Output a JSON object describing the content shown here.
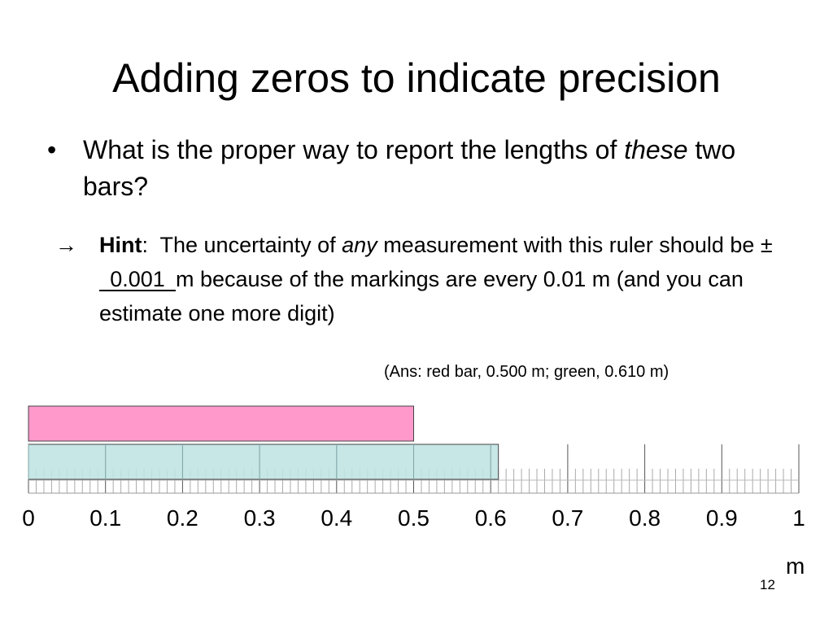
{
  "slide": {
    "title": "Adding zeros to indicate precision",
    "bullet": {
      "symbol": "•",
      "text_before": "What is the proper way to report the lengths of ",
      "emphasis": "these",
      "text_after": " two bars?"
    },
    "hint": {
      "symbol": "→",
      "label": "Hint",
      "colon": ":",
      "text1": "  The uncertainty of ",
      "emphasis": "any",
      "text2": " measurement with this ruler should be ",
      "plusminus": "±",
      "blank_answer": "0.001",
      "text3": "m because of the markings are every 0.01 m (and you can estimate one more digit)"
    },
    "answer_note": "(Ans:  red bar, 0.500 m; green, 0.610 m)",
    "page_number": "12"
  },
  "chart_data": {
    "type": "bar",
    "orientation": "horizontal",
    "categories": [
      "red bar",
      "green bar"
    ],
    "values": [
      0.5,
      0.61
    ],
    "colors": [
      "#ff99cc",
      "#bfe3e3"
    ],
    "xlim": [
      0,
      1
    ],
    "x_ticks": [
      "0",
      "0.1",
      "0.2",
      "0.3",
      "0.4",
      "0.5",
      "0.6",
      "0.7",
      "0.8",
      "0.9",
      "1"
    ],
    "minor_tick_step": 0.01,
    "xlabel": "m"
  }
}
